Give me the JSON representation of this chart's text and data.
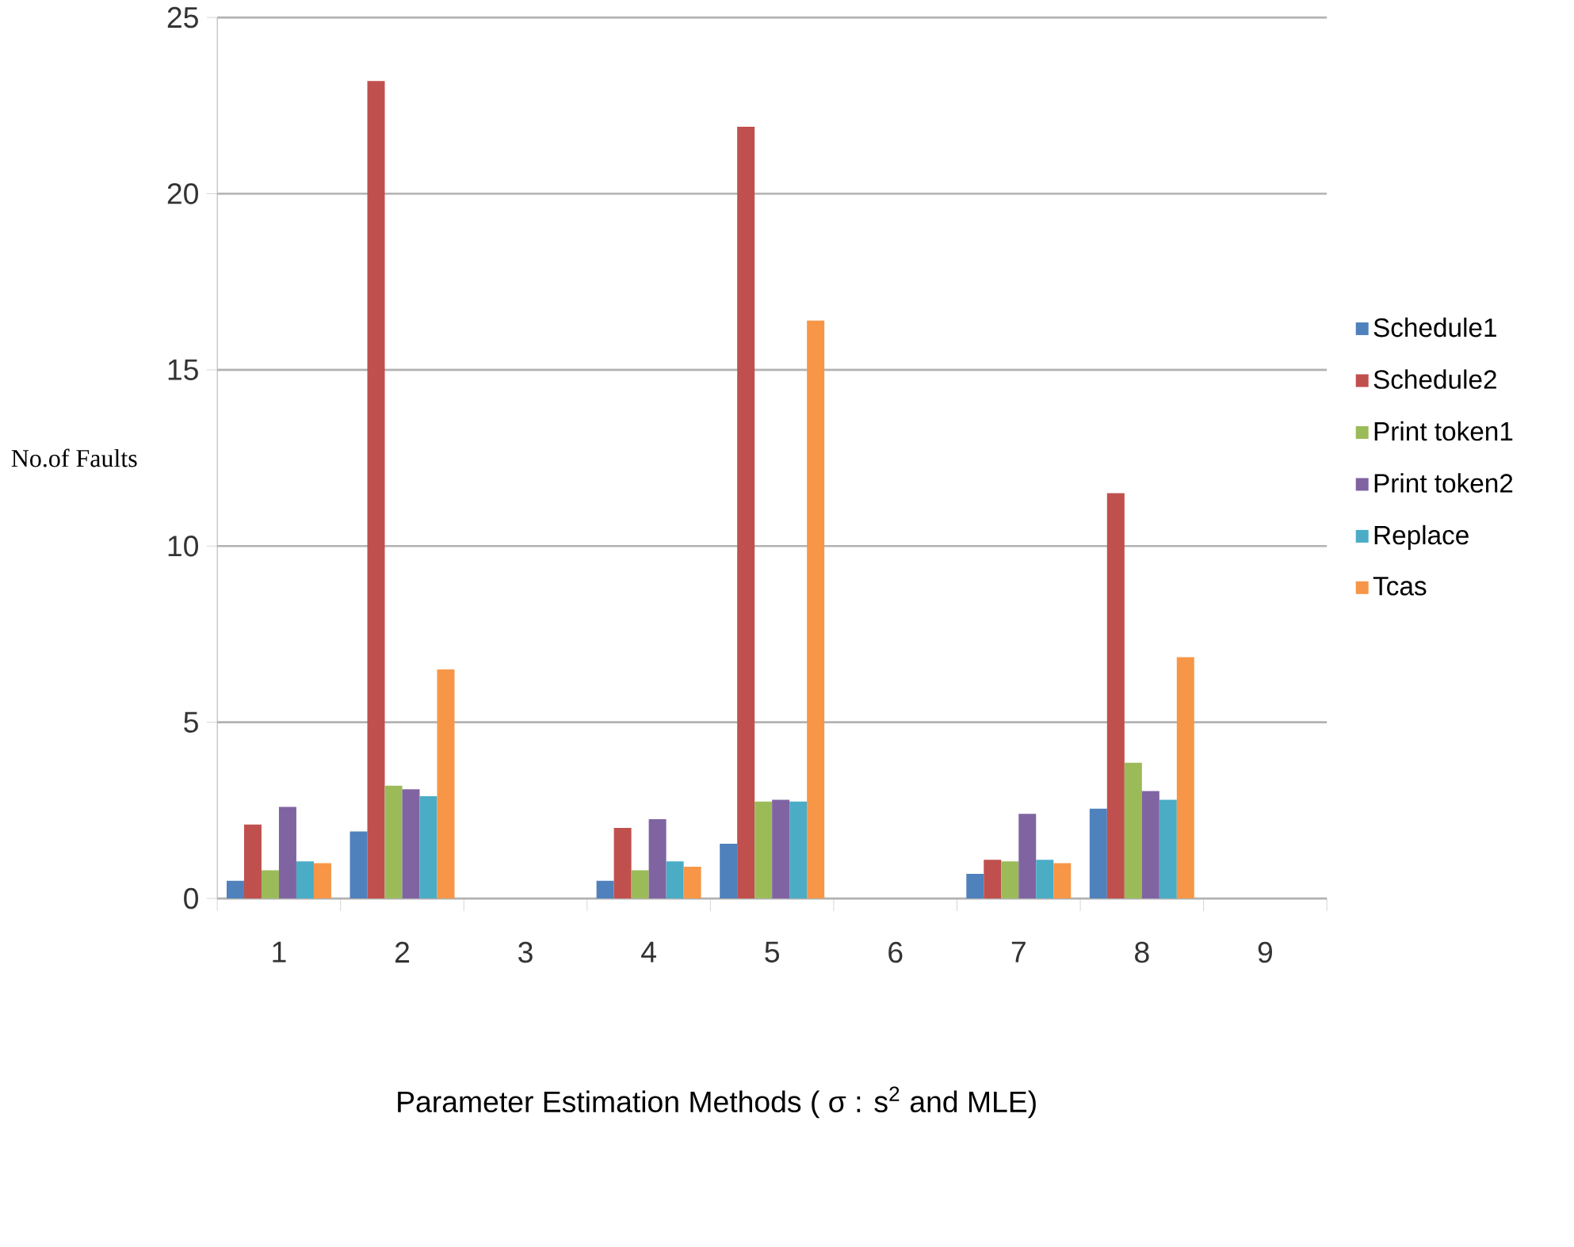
{
  "chart_data": {
    "type": "bar",
    "xlabel": "Parameter Estimation Methods ( σ : s$^{2}$ and MLE)",
    "ylabel": "No.of Faults",
    "categories": [
      "1",
      "2",
      "3",
      "4",
      "5",
      "6",
      "7",
      "8",
      "9"
    ],
    "series": [
      {
        "name": "Schedule1",
        "color": "#4f81bd",
        "values": [
          0.5,
          1.9,
          null,
          0.5,
          1.55,
          null,
          0.7,
          2.55,
          null
        ]
      },
      {
        "name": "Schedule2",
        "color": "#c0504d",
        "values": [
          2.1,
          23.2,
          null,
          2.0,
          21.9,
          null,
          1.1,
          11.5,
          null
        ]
      },
      {
        "name": "Print token1",
        "color": "#9bbb59",
        "values": [
          0.8,
          3.2,
          null,
          0.8,
          2.75,
          null,
          1.05,
          3.85,
          null
        ]
      },
      {
        "name": "Print token2",
        "color": "#8064a2",
        "values": [
          2.6,
          3.1,
          null,
          2.25,
          2.8,
          null,
          2.4,
          3.05,
          null
        ]
      },
      {
        "name": "Replace",
        "color": "#4bacc6",
        "values": [
          1.05,
          2.9,
          null,
          1.05,
          2.75,
          null,
          1.1,
          2.8,
          null
        ]
      },
      {
        "name": "Tcas",
        "color": "#f79646",
        "values": [
          1.0,
          6.5,
          null,
          0.9,
          16.4,
          null,
          1.0,
          6.85,
          null
        ]
      }
    ],
    "ylim": [
      0,
      25
    ],
    "yticks": [
      0,
      5,
      10,
      15,
      20,
      25
    ],
    "grid": "y",
    "legend": "right"
  }
}
